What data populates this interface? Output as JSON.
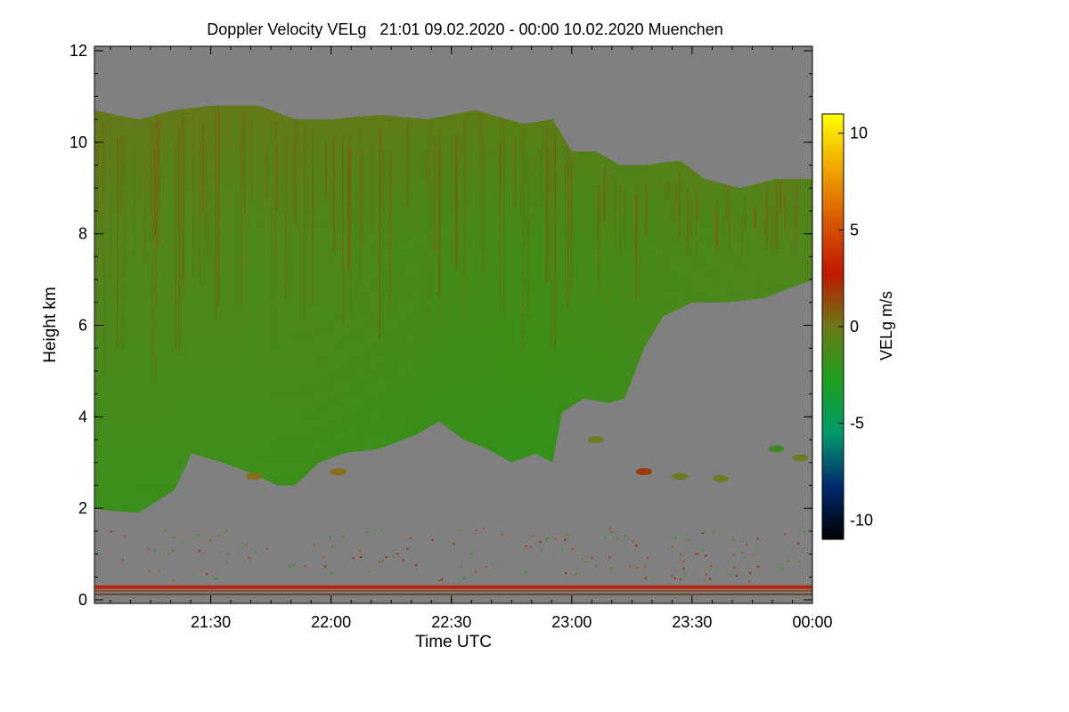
{
  "chart_data": {
    "type": "heatmap",
    "title": "Doppler Velocity VELg   21:01 09.02.2020 - 00:00 10.02.2020 Muenchen",
    "xlabel": "Time UTC",
    "ylabel": "Height km",
    "xlim_hours": [
      21.0167,
      24.0
    ],
    "ylim": [
      0,
      12
    ],
    "x_ticks": [
      {
        "hour": 21.5,
        "label": "21:30"
      },
      {
        "hour": 22.0,
        "label": "22:00"
      },
      {
        "hour": 22.5,
        "label": "22:30"
      },
      {
        "hour": 23.0,
        "label": "23:00"
      },
      {
        "hour": 23.5,
        "label": "23:30"
      },
      {
        "hour": 24.0,
        "label": "00:00"
      }
    ],
    "y_ticks": [
      {
        "value": 0,
        "label": "0"
      },
      {
        "value": 2,
        "label": "2"
      },
      {
        "value": 4,
        "label": "4"
      },
      {
        "value": 6,
        "label": "6"
      },
      {
        "value": 8,
        "label": "8"
      },
      {
        "value": 10,
        "label": "10"
      },
      {
        "value": 12,
        "label": "12"
      }
    ],
    "colorbar": {
      "label": "VELg m/s",
      "range": [
        -11,
        11
      ],
      "ticks": [
        {
          "value": 10,
          "label": "10"
        },
        {
          "value": 5,
          "label": "5"
        },
        {
          "value": 0,
          "label": "0"
        },
        {
          "value": -5,
          "label": "-5"
        },
        {
          "value": -10,
          "label": "-10"
        }
      ],
      "colors": [
        "#000000",
        "#002a6e",
        "#009a6a",
        "#1e9e1e",
        "#6a7a18",
        "#c01800",
        "#d85a00",
        "#f0a800",
        "#ffff00"
      ]
    },
    "background_color": "#808080",
    "cloud_layer": {
      "description_velocity": "mostly -1 to 1 m/s",
      "base_km": [
        [
          21.02,
          2.0
        ],
        [
          21.08,
          1.95
        ],
        [
          21.2,
          1.9
        ],
        [
          21.35,
          2.4
        ],
        [
          21.42,
          3.2
        ],
        [
          21.55,
          3.0
        ],
        [
          21.65,
          2.8
        ],
        [
          21.78,
          2.5
        ],
        [
          21.85,
          2.5
        ],
        [
          21.95,
          3.0
        ],
        [
          22.05,
          3.2
        ],
        [
          22.2,
          3.3
        ],
        [
          22.35,
          3.6
        ],
        [
          22.45,
          3.9
        ],
        [
          22.55,
          3.5
        ],
        [
          22.65,
          3.3
        ],
        [
          22.75,
          3.0
        ],
        [
          22.85,
          3.2
        ],
        [
          22.92,
          3.0
        ],
        [
          22.96,
          4.1
        ],
        [
          23.05,
          4.4
        ],
        [
          23.15,
          4.3
        ],
        [
          23.22,
          4.4
        ],
        [
          23.3,
          5.5
        ],
        [
          23.38,
          6.2
        ],
        [
          23.5,
          6.5
        ],
        [
          23.65,
          6.5
        ],
        [
          23.8,
          6.6
        ],
        [
          23.9,
          6.8
        ],
        [
          24.0,
          7.0
        ]
      ],
      "top_km": [
        [
          21.02,
          10.7
        ],
        [
          21.1,
          10.6
        ],
        [
          21.2,
          10.5
        ],
        [
          21.35,
          10.7
        ],
        [
          21.5,
          10.8
        ],
        [
          21.7,
          10.8
        ],
        [
          21.85,
          10.5
        ],
        [
          22.0,
          10.5
        ],
        [
          22.2,
          10.6
        ],
        [
          22.4,
          10.5
        ],
        [
          22.6,
          10.7
        ],
        [
          22.8,
          10.4
        ],
        [
          22.92,
          10.5
        ],
        [
          23.0,
          9.8
        ],
        [
          23.1,
          9.8
        ],
        [
          23.2,
          9.5
        ],
        [
          23.3,
          9.5
        ],
        [
          23.45,
          9.6
        ],
        [
          23.55,
          9.2
        ],
        [
          23.7,
          9.0
        ],
        [
          23.85,
          9.2
        ],
        [
          24.0,
          9.2
        ]
      ]
    },
    "surface_layers_km": [
      {
        "height_km": 0.28,
        "color": "#c01800"
      },
      {
        "height_km": 0.2,
        "color": "#8a4a20"
      },
      {
        "height_km": 0.12,
        "color": "#6a3a20"
      }
    ],
    "isolated_patches": [
      {
        "hour": 21.68,
        "height_km": 2.7,
        "color": "#8a6a10"
      },
      {
        "hour": 22.03,
        "height_km": 2.8,
        "color": "#8a6a10"
      },
      {
        "hour": 23.1,
        "height_km": 3.5,
        "color": "#6a7a18"
      },
      {
        "hour": 23.3,
        "height_km": 2.8,
        "color": "#a03000"
      },
      {
        "hour": 23.45,
        "height_km": 2.7,
        "color": "#6a7a18"
      },
      {
        "hour": 23.62,
        "height_km": 2.65,
        "color": "#6a7a18"
      },
      {
        "hour": 23.85,
        "height_km": 3.3,
        "color": "#3a8a18"
      },
      {
        "hour": 23.95,
        "height_km": 3.1,
        "color": "#6a7a18"
      }
    ]
  }
}
